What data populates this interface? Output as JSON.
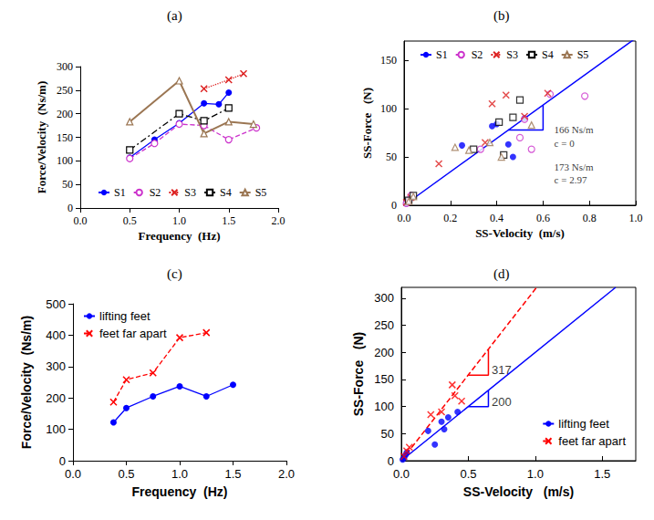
{
  "chart_data": [
    {
      "type": "line",
      "title": "(a)",
      "xlabel": "Frequency  (Hz)",
      "ylabel": "Force/Velocity  (Ns/m)",
      "xlim": [
        0,
        2
      ],
      "xticks": [
        {
          "value": 0,
          "label": "0.0"
        },
        0.5,
        {
          "value": 1,
          "label": "1.0"
        },
        1.5,
        {
          "value": 2,
          "label": "2.0"
        }
      ],
      "ylim": [
        0,
        300
      ],
      "yticks": [
        0,
        50,
        100,
        150,
        200,
        250,
        300
      ],
      "grid": false,
      "legend": "lower center",
      "series": [
        {
          "name": "S1",
          "color": "#0000ff",
          "marker": "circle",
          "line_style": "solid",
          "x": [
            0.5,
            0.75,
            1.0,
            1.25,
            1.4,
            1.5
          ],
          "values": [
            107,
            145,
            180,
            222,
            220,
            245
          ]
        },
        {
          "name": "S2",
          "color": "#cc33cc",
          "marker": "open_circle",
          "line_style": "dashed",
          "x": [
            0.5,
            0.75,
            1.0,
            1.25,
            1.5,
            1.78
          ],
          "values": [
            105,
            137,
            178,
            175,
            145,
            170
          ]
        },
        {
          "name": "S3",
          "color": "#dd2222",
          "marker": "x",
          "line_style": "dotted",
          "x": [
            1.25,
            1.5,
            1.65
          ],
          "values": [
            253,
            272,
            285
          ]
        },
        {
          "name": "S4",
          "color": "#000000",
          "marker": "open_square",
          "line_style": "dashdot",
          "x": [
            0.5,
            1.0,
            1.25,
            1.5
          ],
          "values": [
            123,
            200,
            185,
            212
          ]
        },
        {
          "name": "S5",
          "color": "#9b7653",
          "marker": "open_triangle",
          "line_style": "solid",
          "x": [
            0.5,
            1.0,
            1.25,
            1.5,
            1.75
          ],
          "values": [
            183,
            270,
            158,
            183,
            178
          ]
        }
      ]
    },
    {
      "type": "scatter",
      "title": "(b)",
      "xlabel": "SS-Velocity  (m/s)",
      "ylabel": "SS-Force   (N)",
      "xlim": [
        0,
        1
      ],
      "xticks": [
        {
          "value": 0,
          "label": "0.0"
        },
        0.2,
        0.4,
        0.6,
        0.8,
        {
          "value": 1,
          "label": "1.0"
        }
      ],
      "ylim": [
        0,
        170
      ],
      "yticks": [
        0,
        50,
        100,
        150
      ],
      "grid": false,
      "legend": "upper center",
      "series": [
        {
          "name": "S1",
          "color": "#0000ff",
          "marker": "circle",
          "x": [
            0.01,
            0.02,
            0.02,
            0.03,
            0.25,
            0.38,
            0.4,
            0.45,
            0.47,
            0.52
          ],
          "values": [
            2,
            3,
            5,
            8,
            62,
            82,
            84,
            63,
            50,
            90
          ]
        },
        {
          "name": "S2",
          "color": "#cc33cc",
          "marker": "open_circle",
          "x": [
            0.01,
            0.02,
            0.03,
            0.33,
            0.5,
            0.52,
            0.55,
            0.63,
            0.78
          ],
          "values": [
            2,
            4,
            10,
            58,
            70,
            89,
            58,
            115,
            113
          ]
        },
        {
          "name": "S3",
          "color": "#dd2222",
          "marker": "x",
          "x": [
            0.01,
            0.03,
            0.15,
            0.35,
            0.38,
            0.44,
            0.52,
            0.62
          ],
          "values": [
            3,
            8,
            43,
            65,
            105,
            114,
            92,
            116
          ]
        },
        {
          "name": "S4",
          "color": "#000000",
          "marker": "open_square",
          "x": [
            0.02,
            0.04,
            0.3,
            0.41,
            0.43,
            0.47,
            0.5
          ],
          "values": [
            5,
            10,
            58,
            86,
            52,
            91,
            109
          ]
        },
        {
          "name": "S5",
          "color": "#9b7653",
          "marker": "open_triangle",
          "x": [
            0.02,
            0.04,
            0.22,
            0.28,
            0.37,
            0.42,
            0.55
          ],
          "values": [
            4,
            9,
            60,
            57,
            65,
            50,
            83
          ]
        }
      ],
      "lines": [
        {
          "color": "#0000ff",
          "line_style": "solid",
          "x": [
            0,
            1
          ],
          "values": [
            0,
            173
          ]
        },
        {
          "color": "#0000ff",
          "line_style": "solid",
          "x": [
            0.45,
            0.6,
            0.6
          ],
          "values": [
            78,
            78,
            104
          ]
        }
      ],
      "annotations": [
        {
          "text": "166 Ns/m",
          "x": 0.64,
          "y": 78
        },
        {
          "text": "c = 0",
          "x": 0.64,
          "y": 64
        },
        {
          "text": "173 Ns/m",
          "x": 0.64,
          "y": 40
        },
        {
          "text": "c = 2.97",
          "x": 0.64,
          "y": 26
        }
      ]
    },
    {
      "type": "line",
      "title": "(c)",
      "xlabel": "Frequency  (Hz)",
      "ylabel": "Force/Velocity  (Ns/m)",
      "xlim": [
        0,
        2
      ],
      "xticks": [
        {
          "value": 0,
          "label": "0.0"
        },
        0.5,
        {
          "value": 1,
          "label": "1.0"
        },
        1.5,
        {
          "value": 2,
          "label": "2.0"
        }
      ],
      "ylim": [
        0,
        500
      ],
      "yticks": [
        0,
        100,
        200,
        300,
        400,
        500
      ],
      "grid": false,
      "legend": "upper left",
      "series": [
        {
          "name": "lifting feet",
          "color": "#0000ff",
          "marker": "circle",
          "line_style": "solid",
          "x": [
            0.38,
            0.5,
            0.75,
            1.0,
            1.25,
            1.5
          ],
          "values": [
            122,
            168,
            205,
            237,
            205,
            242
          ]
        },
        {
          "name": "feet far apart",
          "color": "#ff0000",
          "marker": "x",
          "line_style": "dashed",
          "x": [
            0.38,
            0.5,
            0.75,
            1.0,
            1.25
          ],
          "values": [
            187,
            258,
            280,
            392,
            408
          ]
        }
      ]
    },
    {
      "type": "scatter",
      "title": "(d)",
      "xlabel": "SS-Velocity   (m/s)",
      "ylabel": "SS-Force   (N)",
      "xlim": [
        0,
        1.75
      ],
      "xticks": [
        {
          "value": 0,
          "label": "0.0"
        },
        0.5,
        {
          "value": 1,
          "label": "1.0"
        },
        1.5
      ],
      "ylim": [
        0,
        320
      ],
      "yticks": [
        0,
        50,
        100,
        150,
        200,
        250,
        300
      ],
      "grid": false,
      "legend": "lower right",
      "series": [
        {
          "name": "lifting feet",
          "color": "#0000ff",
          "marker": "circle",
          "x": [
            0.01,
            0.02,
            0.03,
            0.04,
            0.2,
            0.25,
            0.3,
            0.32,
            0.35,
            0.42
          ],
          "values": [
            2,
            5,
            10,
            15,
            55,
            30,
            72,
            58,
            80,
            90
          ]
        },
        {
          "name": "feet far apart",
          "color": "#ff0000",
          "marker": "x",
          "x": [
            0.02,
            0.04,
            0.06,
            0.22,
            0.3,
            0.38,
            0.4,
            0.45
          ],
          "values": [
            8,
            18,
            25,
            85,
            90,
            140,
            120,
            110
          ]
        }
      ],
      "lines": [
        {
          "color": "#0000ff",
          "line_style": "solid",
          "x": [
            0,
            1.6
          ],
          "values": [
            0,
            320
          ]
        },
        {
          "color": "#ff0000",
          "line_style": "dashed",
          "x": [
            0,
            1.01
          ],
          "values": [
            0,
            320
          ]
        },
        {
          "color": "#ff0000",
          "line_style": "solid",
          "x": [
            0.5,
            0.65,
            0.65
          ],
          "values": [
            158,
            158,
            206
          ]
        },
        {
          "color": "#0000ff",
          "line_style": "solid",
          "x": [
            0.5,
            0.65,
            0.65
          ],
          "values": [
            100,
            100,
            130
          ]
        }
      ],
      "annotations": [
        {
          "text": "317",
          "x": 0.66,
          "y": 168
        },
        {
          "text": "200",
          "x": 0.66,
          "y": 108
        }
      ]
    }
  ]
}
